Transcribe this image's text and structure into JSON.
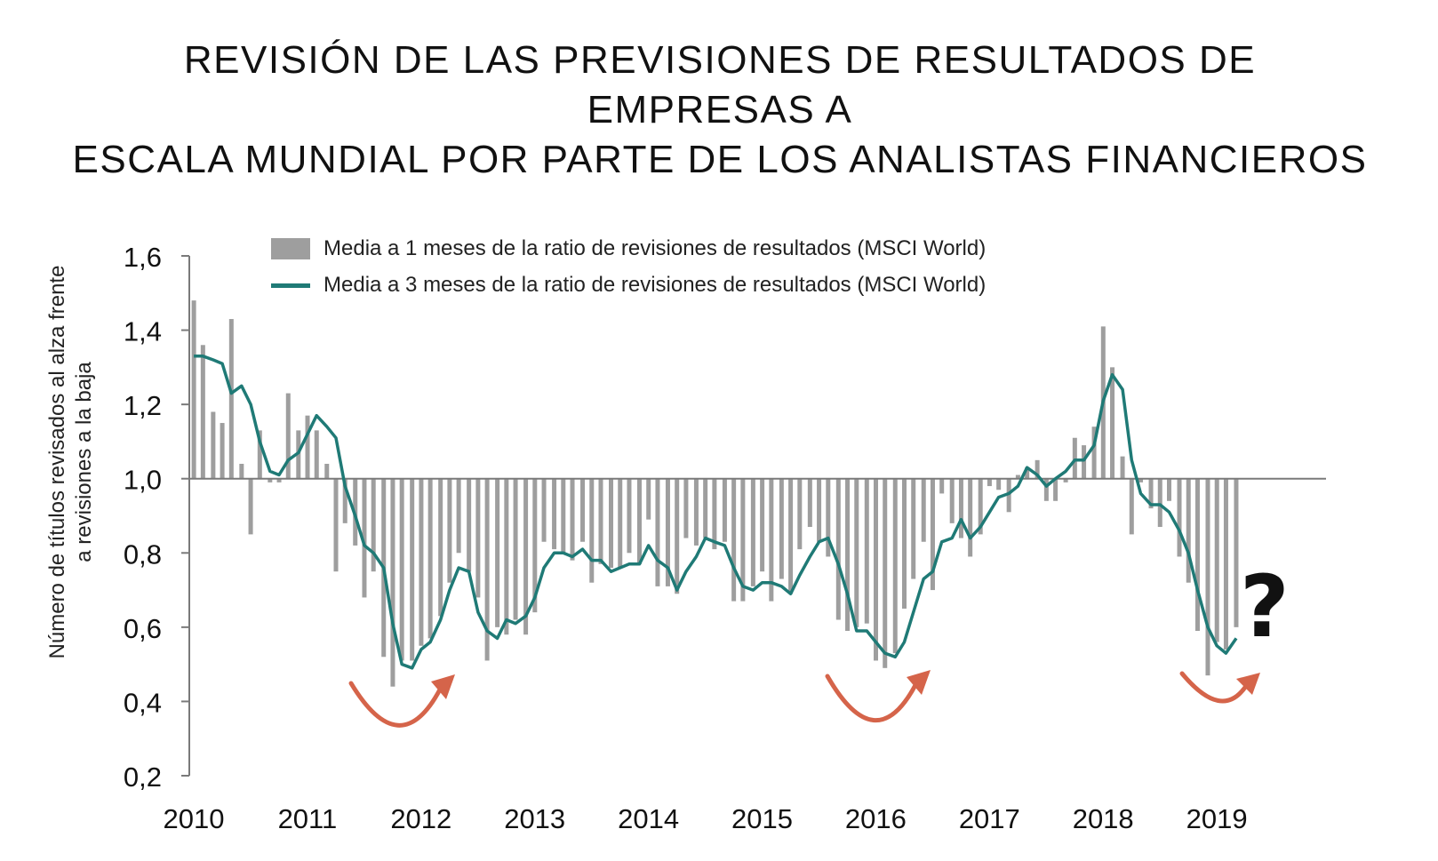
{
  "title_lines": [
    "REVISIÓN DE LAS PREVISIONES DE RESULTADOS DE EMPRESAS A",
    "ESCALA MUNDIAL POR PARTE DE LOS ANALISTAS FINANCIEROS"
  ],
  "annotation": "?",
  "colors": {
    "bars": "#9e9e9e",
    "line": "#1f7a76",
    "arrows": "#d5644a",
    "axis": "#7a7a7a"
  },
  "chart_data": {
    "type": "bar",
    "ylabel_lines": [
      "Número de títulos revisados al alza frente",
      "a revisiones a la baja"
    ],
    "ylim": [
      0.2,
      1.6
    ],
    "baseline": 1.0,
    "yticks": [
      0.2,
      0.4,
      0.6,
      0.8,
      1.0,
      1.2,
      1.4,
      1.6
    ],
    "ytick_labels": [
      "0,2",
      "0,4",
      "0,6",
      "0,8",
      "1,0",
      "1,2",
      "1,4",
      "1,6"
    ],
    "xlim": [
      2010.0,
      2020.0
    ],
    "xtick_labels": [
      "2010",
      "2011",
      "2012",
      "2013",
      "2014",
      "2015",
      "2016",
      "2017",
      "2018",
      "2019"
    ],
    "xticks": [
      2010,
      2011,
      2012,
      2013,
      2014,
      2015,
      2016,
      2017,
      2018,
      2019
    ],
    "legend_position": "top",
    "grid": false,
    "x": [
      2010.04,
      2010.12,
      2010.21,
      2010.29,
      2010.37,
      2010.46,
      2010.54,
      2010.62,
      2010.71,
      2010.79,
      2010.87,
      2010.96,
      2011.04,
      2011.12,
      2011.21,
      2011.29,
      2011.37,
      2011.46,
      2011.54,
      2011.62,
      2011.71,
      2011.79,
      2011.87,
      2011.96,
      2012.04,
      2012.12,
      2012.21,
      2012.29,
      2012.37,
      2012.46,
      2012.54,
      2012.62,
      2012.71,
      2012.79,
      2012.87,
      2012.96,
      2013.04,
      2013.12,
      2013.21,
      2013.29,
      2013.37,
      2013.46,
      2013.54,
      2013.62,
      2013.71,
      2013.79,
      2013.87,
      2013.96,
      2014.04,
      2014.12,
      2014.21,
      2014.29,
      2014.37,
      2014.46,
      2014.54,
      2014.62,
      2014.71,
      2014.79,
      2014.87,
      2014.96,
      2015.04,
      2015.12,
      2015.21,
      2015.29,
      2015.37,
      2015.46,
      2015.54,
      2015.62,
      2015.71,
      2015.79,
      2015.87,
      2015.96,
      2016.04,
      2016.12,
      2016.21,
      2016.29,
      2016.37,
      2016.46,
      2016.54,
      2016.62,
      2016.71,
      2016.79,
      2016.87,
      2016.96,
      2017.04,
      2017.12,
      2017.21,
      2017.29,
      2017.37,
      2017.46,
      2017.54,
      2017.62,
      2017.71,
      2017.79,
      2017.87,
      2017.96,
      2018.04,
      2018.12,
      2018.21,
      2018.29,
      2018.37,
      2018.46,
      2018.54,
      2018.62,
      2018.71,
      2018.79,
      2018.87,
      2018.96,
      2019.04,
      2019.12,
      2019.21
    ],
    "series": [
      {
        "name": "Media a 1 meses de la ratio de revisiones de resultados (MSCI World)",
        "type": "bar",
        "values": [
          1.48,
          1.36,
          1.18,
          1.15,
          1.43,
          1.04,
          0.85,
          1.13,
          0.99,
          0.99,
          1.23,
          1.13,
          1.17,
          1.13,
          1.04,
          0.75,
          0.88,
          0.82,
          0.68,
          0.75,
          0.52,
          0.44,
          0.51,
          0.51,
          0.55,
          0.57,
          0.63,
          0.72,
          0.8,
          0.75,
          0.68,
          0.51,
          0.6,
          0.58,
          0.62,
          0.58,
          0.64,
          0.83,
          0.81,
          0.8,
          0.78,
          0.83,
          0.72,
          0.77,
          0.76,
          0.76,
          0.8,
          0.77,
          0.89,
          0.71,
          0.71,
          0.69,
          0.84,
          0.82,
          0.84,
          0.81,
          0.83,
          0.67,
          0.67,
          0.71,
          0.75,
          0.67,
          0.73,
          0.69,
          0.81,
          0.87,
          0.83,
          0.79,
          0.62,
          0.59,
          0.6,
          0.61,
          0.51,
          0.49,
          0.53,
          0.65,
          0.73,
          0.83,
          0.7,
          0.96,
          0.88,
          0.84,
          0.79,
          0.85,
          0.98,
          0.97,
          0.91,
          1.01,
          1.03,
          1.05,
          0.94,
          0.94,
          0.99,
          1.11,
          1.09,
          1.14,
          1.41,
          1.3,
          1.06,
          0.85,
          0.99,
          0.92,
          0.87,
          0.94,
          0.79,
          0.72,
          0.59,
          0.47,
          0.56,
          0.54,
          0.6
        ]
      },
      {
        "name": "Media a 3 meses de la ratio de revisiones de resultados (MSCI World)",
        "type": "line",
        "values": [
          1.33,
          1.33,
          1.32,
          1.31,
          1.23,
          1.25,
          1.2,
          1.1,
          1.02,
          1.01,
          1.05,
          1.07,
          1.12,
          1.17,
          1.14,
          1.11,
          0.98,
          0.9,
          0.82,
          0.8,
          0.76,
          0.61,
          0.5,
          0.49,
          0.54,
          0.56,
          0.62,
          0.7,
          0.76,
          0.75,
          0.64,
          0.59,
          0.57,
          0.62,
          0.61,
          0.63,
          0.68,
          0.76,
          0.8,
          0.8,
          0.79,
          0.81,
          0.78,
          0.78,
          0.75,
          0.76,
          0.77,
          0.77,
          0.82,
          0.78,
          0.76,
          0.7,
          0.75,
          0.79,
          0.84,
          0.83,
          0.82,
          0.76,
          0.71,
          0.7,
          0.72,
          0.72,
          0.71,
          0.69,
          0.74,
          0.79,
          0.83,
          0.84,
          0.77,
          0.69,
          0.59,
          0.59,
          0.56,
          0.53,
          0.52,
          0.56,
          0.64,
          0.73,
          0.75,
          0.83,
          0.84,
          0.89,
          0.84,
          0.87,
          0.91,
          0.95,
          0.96,
          0.98,
          1.03,
          1.01,
          0.98,
          1.0,
          1.02,
          1.05,
          1.05,
          1.09,
          1.21,
          1.28,
          1.24,
          1.05,
          0.96,
          0.93,
          0.93,
          0.91,
          0.86,
          0.8,
          0.7,
          0.6,
          0.55,
          0.53,
          0.57
        ]
      }
    ]
  }
}
